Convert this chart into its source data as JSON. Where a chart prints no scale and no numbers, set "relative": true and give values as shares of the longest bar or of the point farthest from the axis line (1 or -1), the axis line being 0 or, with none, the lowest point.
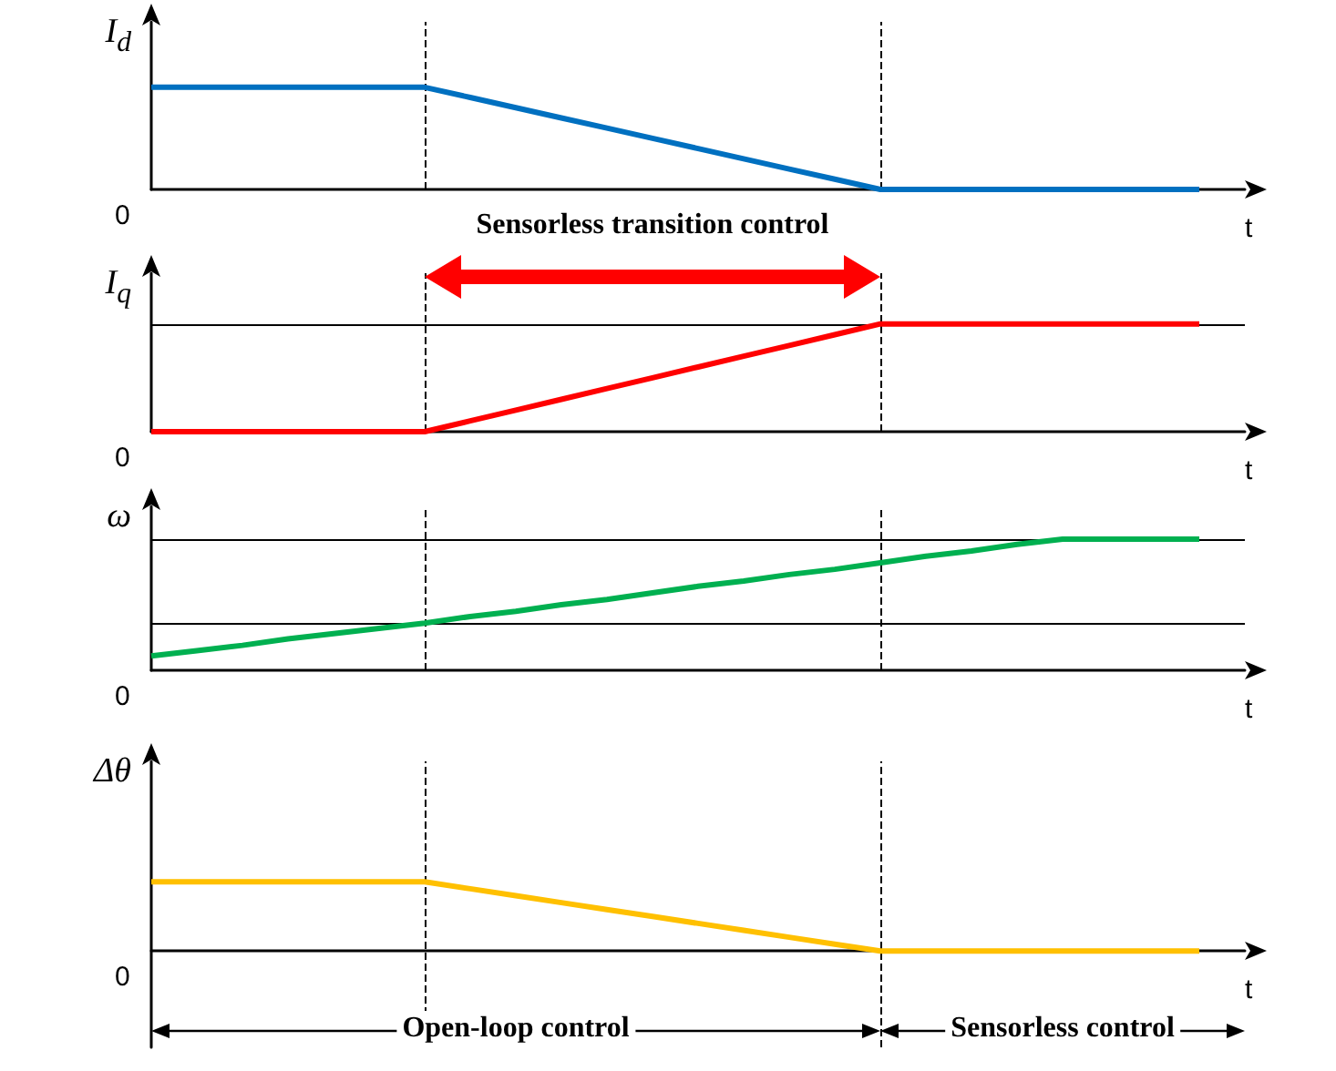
{
  "chart_data": [
    {
      "type": "line",
      "ylabel": "I$_{d}$",
      "xlabel": "t",
      "relative": true,
      "marker": "none",
      "line_style": "solid",
      "categories": [
        null,
        null,
        null,
        null,
        null,
        null,
        null,
        null,
        null,
        null,
        null,
        null,
        null,
        null,
        null,
        null,
        null,
        null,
        null,
        null,
        null,
        null,
        null,
        null,
        null
      ],
      "series": [
        {
          "color": "#0070c0",
          "values": [
            1,
            1,
            1,
            1,
            1,
            1,
            1,
            0.9,
            0.8,
            0.7,
            0.6,
            0.5,
            0.4,
            0.3,
            0.2,
            0.1,
            0,
            0,
            0,
            0,
            0,
            0,
            0,
            0,
            null
          ]
        }
      ],
      "annotations": [
        "0"
      ]
    },
    {
      "type": "line",
      "ylabel": "I$_{q}$",
      "xlabel": "t",
      "relative": true,
      "marker": "none",
      "line_style": "solid",
      "categories": [
        null,
        null,
        null,
        null,
        null,
        null,
        null,
        null,
        null,
        null,
        null,
        null,
        null,
        null,
        null,
        null,
        null,
        null,
        null,
        null,
        null,
        null,
        null,
        null,
        null
      ],
      "series": [
        {
          "color": "#ff0000",
          "values": [
            0,
            0,
            0,
            0,
            0,
            0,
            0,
            0.1,
            0.2,
            0.3,
            0.4,
            0.5,
            0.6,
            0.7,
            0.8,
            0.9,
            1,
            1,
            1,
            1,
            1,
            1,
            1,
            1,
            null
          ]
        }
      ],
      "ref_lines": [
        {
          "axis": "y",
          "value": 1,
          "line_style": "solid",
          "color": "#000000"
        }
      ],
      "annotations": [
        "0",
        "Sensorless transition control"
      ]
    },
    {
      "type": "line",
      "ylabel": "ω",
      "xlabel": "t",
      "relative": true,
      "marker": "none",
      "line_style": "solid",
      "categories": [
        null,
        null,
        null,
        null,
        null,
        null,
        null,
        null,
        null,
        null,
        null,
        null,
        null,
        null,
        null,
        null,
        null,
        null,
        null,
        null,
        null,
        null,
        null,
        null,
        null
      ],
      "series": [
        {
          "color": "#00b050",
          "values": [
            0.11,
            0.15,
            0.19,
            0.24,
            0.28,
            0.32,
            0.36,
            0.41,
            0.45,
            0.5,
            0.54,
            0.59,
            0.64,
            0.68,
            0.73,
            0.77,
            0.82,
            0.87,
            0.91,
            0.96,
            1,
            1,
            1,
            1,
            null
          ]
        }
      ],
      "ref_lines": [
        {
          "axis": "y",
          "value": 1,
          "line_style": "solid",
          "color": "#000000"
        },
        {
          "axis": "y",
          "value": 0.36,
          "line_style": "solid",
          "color": "#000000"
        }
      ],
      "annotations": [
        "0"
      ]
    },
    {
      "type": "line",
      "ylabel": "Δθ",
      "xlabel": "t",
      "relative": true,
      "marker": "none",
      "line_style": "solid",
      "categories": [
        null,
        null,
        null,
        null,
        null,
        null,
        null,
        null,
        null,
        null,
        null,
        null,
        null,
        null,
        null,
        null,
        null,
        null,
        null,
        null,
        null,
        null,
        null,
        null,
        null
      ],
      "series": [
        {
          "color": "#ffc000",
          "values": [
            1,
            1,
            1,
            1,
            1,
            1,
            1,
            0.9,
            0.8,
            0.7,
            0.6,
            0.5,
            0.4,
            0.3,
            0.2,
            0.1,
            0,
            0,
            0,
            0,
            0,
            0,
            0,
            0,
            null
          ]
        }
      ],
      "annotations": [
        "0",
        "Open-loop control",
        "Sensorless control"
      ]
    }
  ]
}
